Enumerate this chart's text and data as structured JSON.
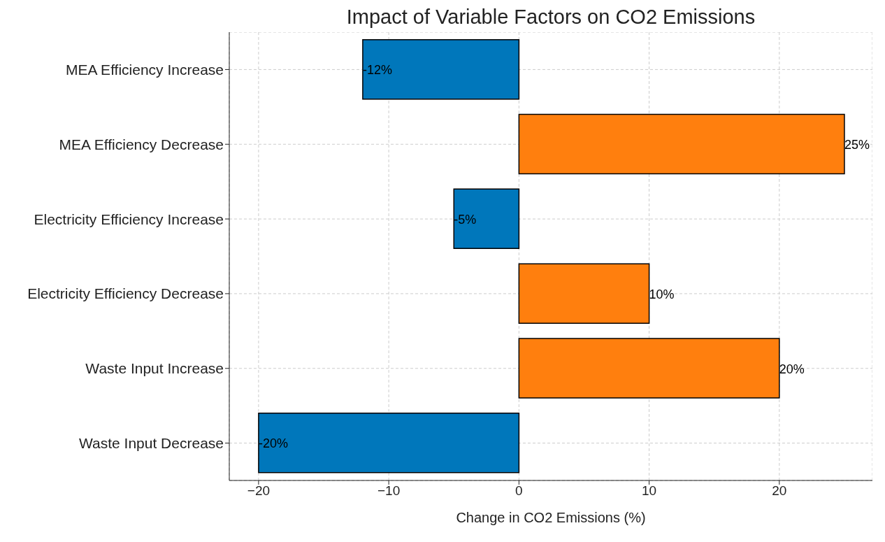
{
  "chart_data": {
    "type": "bar",
    "orientation": "horizontal",
    "title": "Impact of Variable Factors on CO2 Emissions",
    "xlabel": "Change in CO2 Emissions (%)",
    "categories": [
      "MEA Efficiency Increase",
      "MEA Efficiency Decrease",
      "Electricity Efficiency Increase",
      "Electricity Efficiency Decrease",
      "Waste Input Increase",
      "Waste Input Decrease"
    ],
    "values": [
      -12,
      25,
      -5,
      10,
      20,
      -20
    ],
    "colors": [
      "#0077bb",
      "#ff7f0e",
      "#0077bb",
      "#ff7f0e",
      "#ff7f0e",
      "#0077bb"
    ],
    "value_labels": [
      "-12%",
      "25%",
      "-5%",
      "10%",
      "20%",
      "-20%"
    ],
    "xlim": [
      -22.25,
      27.15
    ],
    "xticks": [
      {
        "value": -20,
        "label": "−20"
      },
      {
        "value": -10,
        "label": "−10"
      },
      0,
      10,
      20
    ],
    "grid": true
  }
}
